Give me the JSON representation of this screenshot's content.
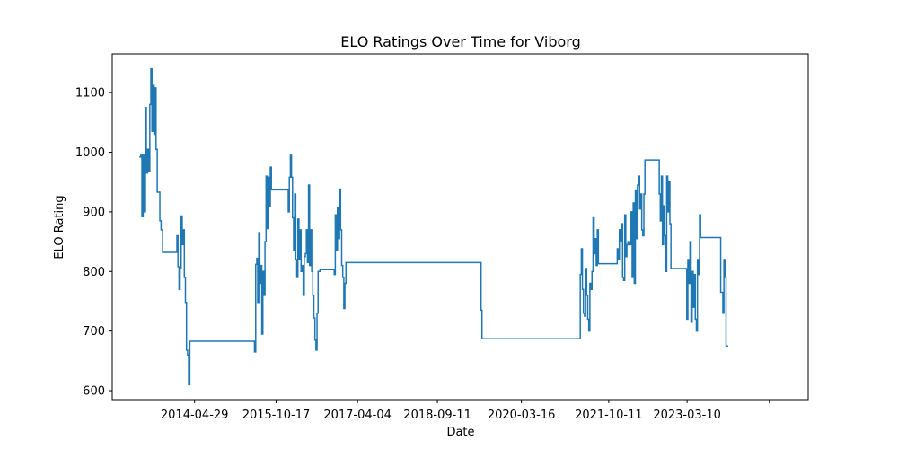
{
  "chart_data": {
    "type": "line",
    "title": "ELO Ratings Over Time for Viborg",
    "xlabel": "Date",
    "ylabel": "ELO Rating",
    "ylim": [
      585,
      1165
    ],
    "yticks": [
      600,
      700,
      800,
      900,
      1000,
      1100
    ],
    "x_range": [
      "2012-11-04",
      "2025-05-14"
    ],
    "xtick_dates": [
      "2014-04-29",
      "2015-10-17",
      "2017-04-04",
      "2018-09-11",
      "2020-03-16",
      "2021-10-11",
      "2023-03-10",
      "2024-09-01"
    ],
    "xtick_labels": [
      "2014-04-29",
      "2015-10-17",
      "2017-04-04",
      "2018-09-11",
      "2020-03-16",
      "2021-10-11",
      "2023-03-10",
      ""
    ],
    "grid": false,
    "series": [
      {
        "name": "Viborg",
        "color": "#1f77b4",
        "points": [
          [
            "2013-05-01",
            992
          ],
          [
            "2013-05-10",
            995
          ],
          [
            "2013-05-18",
            892
          ],
          [
            "2013-05-26",
            995
          ],
          [
            "2013-06-03",
            900
          ],
          [
            "2013-06-10",
            1075
          ],
          [
            "2013-06-16",
            965
          ],
          [
            "2013-06-24",
            1005
          ],
          [
            "2013-07-01",
            968
          ],
          [
            "2013-07-09",
            1080
          ],
          [
            "2013-07-16",
            1140
          ],
          [
            "2013-07-23",
            1035
          ],
          [
            "2013-07-30",
            1112
          ],
          [
            "2013-08-06",
            1030
          ],
          [
            "2013-08-12",
            1108
          ],
          [
            "2013-08-19",
            1005
          ],
          [
            "2013-08-27",
            933
          ],
          [
            "2013-09-06",
            933
          ],
          [
            "2013-09-13",
            885
          ],
          [
            "2013-09-21",
            870
          ],
          [
            "2013-10-01",
            832
          ],
          [
            "2013-11-01",
            832
          ],
          [
            "2013-12-03",
            832
          ],
          [
            "2013-12-26",
            832
          ],
          [
            "2014-01-03",
            860
          ],
          [
            "2014-01-10",
            808
          ],
          [
            "2014-01-17",
            770
          ],
          [
            "2014-01-24",
            805
          ],
          [
            "2014-01-31",
            893
          ],
          [
            "2014-02-07",
            845
          ],
          [
            "2014-02-14",
            870
          ],
          [
            "2014-02-21",
            790
          ],
          [
            "2014-02-28",
            748
          ],
          [
            "2014-03-07",
            668
          ],
          [
            "2014-03-14",
            660
          ],
          [
            "2014-03-21",
            610
          ],
          [
            "2014-03-29",
            683
          ],
          [
            "2014-05-15",
            683
          ],
          [
            "2014-08-01",
            683
          ],
          [
            "2014-11-01",
            683
          ],
          [
            "2015-02-01",
            683
          ],
          [
            "2015-05-01",
            683
          ],
          [
            "2015-05-20",
            683
          ],
          [
            "2015-05-28",
            665
          ],
          [
            "2015-06-05",
            812
          ],
          [
            "2015-06-12",
            822
          ],
          [
            "2015-06-18",
            748
          ],
          [
            "2015-06-25",
            865
          ],
          [
            "2015-07-02",
            780
          ],
          [
            "2015-07-09",
            810
          ],
          [
            "2015-07-15",
            695
          ],
          [
            "2015-07-22",
            800
          ],
          [
            "2015-07-29",
            760
          ],
          [
            "2015-08-05",
            850
          ],
          [
            "2015-08-12",
            960
          ],
          [
            "2015-08-19",
            872
          ],
          [
            "2015-08-26",
            958
          ],
          [
            "2015-09-02",
            910
          ],
          [
            "2015-09-09",
            975
          ],
          [
            "2015-09-16",
            937
          ],
          [
            "2015-10-01",
            937
          ],
          [
            "2015-11-01",
            937
          ],
          [
            "2015-12-01",
            937
          ],
          [
            "2016-01-05",
            900
          ],
          [
            "2016-01-12",
            958
          ],
          [
            "2016-01-19",
            995
          ],
          [
            "2016-01-26",
            958
          ],
          [
            "2016-02-02",
            890
          ],
          [
            "2016-02-09",
            835
          ],
          [
            "2016-02-16",
            930
          ],
          [
            "2016-02-23",
            820
          ],
          [
            "2016-03-01",
            790
          ],
          [
            "2016-03-08",
            888
          ],
          [
            "2016-03-15",
            820
          ],
          [
            "2016-03-22",
            870
          ],
          [
            "2016-03-29",
            800
          ],
          [
            "2016-04-05",
            810
          ],
          [
            "2016-04-12",
            760
          ],
          [
            "2016-04-19",
            825
          ],
          [
            "2016-04-26",
            830
          ],
          [
            "2016-05-03",
            870
          ],
          [
            "2016-05-10",
            815
          ],
          [
            "2016-05-17",
            945
          ],
          [
            "2016-05-24",
            810
          ],
          [
            "2016-05-31",
            870
          ],
          [
            "2016-06-07",
            800
          ],
          [
            "2016-06-14",
            760
          ],
          [
            "2016-06-21",
            722
          ],
          [
            "2016-06-28",
            685
          ],
          [
            "2016-07-05",
            668
          ],
          [
            "2016-07-12",
            730
          ],
          [
            "2016-07-19",
            800
          ],
          [
            "2016-08-01",
            803
          ],
          [
            "2016-09-15",
            803
          ],
          [
            "2016-10-26",
            803
          ],
          [
            "2016-11-02",
            795
          ],
          [
            "2016-11-09",
            895
          ],
          [
            "2016-11-16",
            835
          ],
          [
            "2016-11-23",
            908
          ],
          [
            "2016-11-30",
            855
          ],
          [
            "2016-12-07",
            938
          ],
          [
            "2016-12-14",
            870
          ],
          [
            "2016-12-21",
            810
          ],
          [
            "2016-12-28",
            790
          ],
          [
            "2017-01-04",
            738
          ],
          [
            "2017-01-11",
            780
          ],
          [
            "2017-01-18",
            815
          ],
          [
            "2017-06-01",
            815
          ],
          [
            "2018-01-01",
            815
          ],
          [
            "2018-09-11",
            815
          ],
          [
            "2019-04-01",
            815
          ],
          [
            "2019-06-20",
            815
          ],
          [
            "2019-06-25",
            735
          ],
          [
            "2019-07-01",
            687
          ],
          [
            "2020-01-01",
            687
          ],
          [
            "2020-06-01",
            687
          ],
          [
            "2021-01-01",
            687
          ],
          [
            "2021-03-30",
            687
          ],
          [
            "2021-04-07",
            795
          ],
          [
            "2021-04-14",
            838
          ],
          [
            "2021-04-21",
            770
          ],
          [
            "2021-04-28",
            730
          ],
          [
            "2021-05-05",
            725
          ],
          [
            "2021-05-12",
            805
          ],
          [
            "2021-05-19",
            760
          ],
          [
            "2021-05-26",
            720
          ],
          [
            "2021-06-02",
            700
          ],
          [
            "2021-06-09",
            780
          ],
          [
            "2021-06-16",
            770
          ],
          [
            "2021-06-23",
            800
          ],
          [
            "2021-06-30",
            890
          ],
          [
            "2021-07-07",
            830
          ],
          [
            "2021-07-14",
            855
          ],
          [
            "2021-07-21",
            810
          ],
          [
            "2021-07-28",
            870
          ],
          [
            "2021-08-04",
            813
          ],
          [
            "2021-09-01",
            813
          ],
          [
            "2021-10-01",
            813
          ],
          [
            "2021-11-01",
            813
          ],
          [
            "2021-12-06",
            838
          ],
          [
            "2021-12-13",
            820
          ],
          [
            "2021-12-20",
            870
          ],
          [
            "2021-12-27",
            850
          ],
          [
            "2022-01-03",
            880
          ],
          [
            "2022-01-10",
            790
          ],
          [
            "2022-01-17",
            785
          ],
          [
            "2022-01-24",
            895
          ],
          [
            "2022-01-31",
            825
          ],
          [
            "2022-02-07",
            845
          ],
          [
            "2022-02-14",
            850
          ],
          [
            "2022-02-21",
            850
          ],
          [
            "2022-02-28",
            845
          ],
          [
            "2022-03-07",
            900
          ],
          [
            "2022-03-14",
            790
          ],
          [
            "2022-03-21",
            915
          ],
          [
            "2022-03-28",
            780
          ],
          [
            "2022-04-04",
            935
          ],
          [
            "2022-04-11",
            855
          ],
          [
            "2022-04-18",
            945
          ],
          [
            "2022-04-25",
            960
          ],
          [
            "2022-05-02",
            905
          ],
          [
            "2022-05-09",
            930
          ],
          [
            "2022-05-16",
            870
          ],
          [
            "2022-05-23",
            860
          ],
          [
            "2022-05-30",
            930
          ],
          [
            "2022-06-06",
            987
          ],
          [
            "2022-07-01",
            987
          ],
          [
            "2022-08-15",
            987
          ],
          [
            "2022-09-01",
            987
          ],
          [
            "2022-09-08",
            930
          ],
          [
            "2022-09-15",
            885
          ],
          [
            "2022-09-22",
            960
          ],
          [
            "2022-09-29",
            845
          ],
          [
            "2022-10-06",
            910
          ],
          [
            "2022-10-13",
            860
          ],
          [
            "2022-10-20",
            800
          ],
          [
            "2022-10-27",
            960
          ],
          [
            "2022-11-03",
            900
          ],
          [
            "2022-11-10",
            950
          ],
          [
            "2022-11-17",
            880
          ],
          [
            "2022-11-24",
            805
          ],
          [
            "2023-01-01",
            805
          ],
          [
            "2023-03-01",
            805
          ],
          [
            "2023-03-08",
            720
          ],
          [
            "2023-03-15",
            820
          ],
          [
            "2023-03-22",
            780
          ],
          [
            "2023-03-29",
            850
          ],
          [
            "2023-04-05",
            715
          ],
          [
            "2023-04-12",
            800
          ],
          [
            "2023-04-19",
            740
          ],
          [
            "2023-04-26",
            795
          ],
          [
            "2023-05-03",
            720
          ],
          [
            "2023-05-10",
            700
          ],
          [
            "2023-05-17",
            820
          ],
          [
            "2023-05-24",
            795
          ],
          [
            "2023-05-31",
            895
          ],
          [
            "2023-06-07",
            857
          ],
          [
            "2023-07-15",
            857
          ],
          [
            "2023-09-01",
            857
          ],
          [
            "2023-10-10",
            857
          ],
          [
            "2023-10-17",
            765
          ],
          [
            "2023-10-24",
            765
          ],
          [
            "2023-10-31",
            730
          ],
          [
            "2023-11-07",
            820
          ],
          [
            "2023-11-14",
            790
          ],
          [
            "2023-11-21",
            675
          ],
          [
            "2023-11-28",
            675
          ],
          [
            "2023-12-05",
            675
          ]
        ]
      }
    ]
  }
}
